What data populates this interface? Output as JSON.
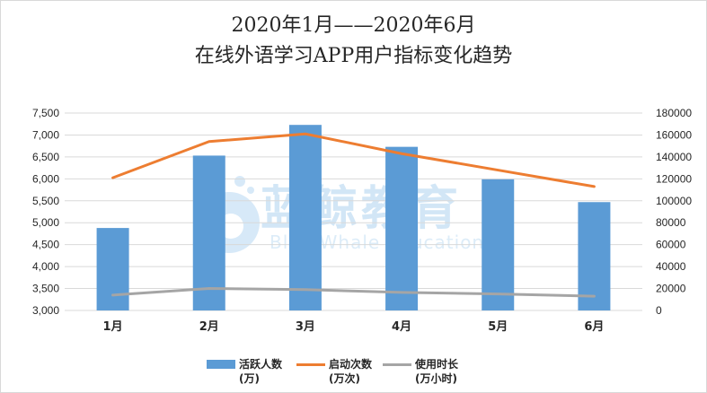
{
  "chart_data": {
    "type": "bar",
    "title": "2020年1月——2020年6月",
    "subtitle": "在线外语学习APP用户指标变化趋势",
    "categories": [
      "1月",
      "2月",
      "3月",
      "4月",
      "5月",
      "6月"
    ],
    "series": [
      {
        "name": "活跃人数(万)",
        "type": "bar",
        "axis": "left",
        "color": "#5b9bd5",
        "values": [
          4880,
          6530,
          7230,
          6730,
          5990,
          5470
        ]
      },
      {
        "name": "启动次数(万次)",
        "type": "line",
        "axis": "right",
        "color": "#ed7d31",
        "values": [
          121000,
          154000,
          161000,
          143000,
          128000,
          113000
        ]
      },
      {
        "name": "使用时长(万小时)",
        "type": "line",
        "axis": "right",
        "color": "#a5a5a5",
        "values": [
          14000,
          20000,
          19000,
          16500,
          15000,
          13000
        ]
      }
    ],
    "y_left": {
      "min": 3000,
      "max": 7500,
      "step": 500,
      "ticks": [
        "3,000",
        "3,500",
        "4,000",
        "4,500",
        "5,000",
        "5,500",
        "6,000",
        "6,500",
        "7,000",
        "7,500"
      ]
    },
    "y_right": {
      "min": 0,
      "max": 180000,
      "step": 20000,
      "ticks": [
        "0",
        "20000",
        "40000",
        "60000",
        "80000",
        "100000",
        "120000",
        "140000",
        "160000",
        "180000"
      ]
    },
    "grid": true,
    "legend_position": "bottom"
  },
  "legend": {
    "bar_label": "活跃人数\n(万)",
    "line1_label": "启动次数\n(万次)",
    "line2_label": "使用时长\n(万小时)"
  },
  "watermark": {
    "main": "蓝鲸教育",
    "sub": "Blue Whale Education"
  }
}
